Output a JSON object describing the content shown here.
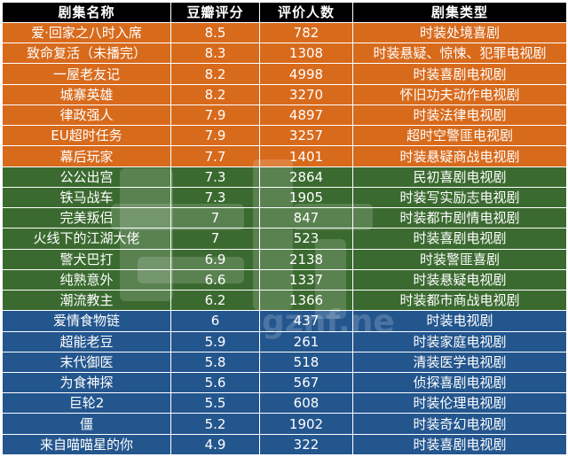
{
  "headers": [
    "剧集名称",
    "豆瓣评分",
    "评价人数",
    "剧集类型"
  ],
  "colors": {
    "orange": "#d86a1c",
    "green": "#3b6a30",
    "blue": "#24568e",
    "header": "#000000"
  },
  "rows": [
    {
      "group": "orange",
      "name": "爱·回家之八时入席",
      "score": "8.5",
      "votes": "782",
      "genre": "时装处境喜剧"
    },
    {
      "group": "orange",
      "name": "致命复活（未播完）",
      "score": "8.3",
      "votes": "1308",
      "genre": "时装悬疑、惊悚、犯罪电视剧"
    },
    {
      "group": "orange",
      "name": "一屋老友记",
      "score": "8.2",
      "votes": "4998",
      "genre": "时装喜剧电视剧"
    },
    {
      "group": "orange",
      "name": "城寨英雄",
      "score": "8.2",
      "votes": "3270",
      "genre": "怀旧功夫动作电视剧"
    },
    {
      "group": "orange",
      "name": "律政强人",
      "score": "7.9",
      "votes": "4897",
      "genre": "时装法律电视剧"
    },
    {
      "group": "orange",
      "name": "EU超时任务",
      "score": "7.9",
      "votes": "3257",
      "genre": "超时空警匪电视剧"
    },
    {
      "group": "orange",
      "name": "幕后玩家",
      "score": "7.7",
      "votes": "1401",
      "genre": "时装悬疑商战电视剧"
    },
    {
      "group": "green",
      "name": "公公出宫",
      "score": "7.3",
      "votes": "2864",
      "genre": "民初喜剧电视剧"
    },
    {
      "group": "green",
      "name": "铁马战车",
      "score": "7.3",
      "votes": "1905",
      "genre": "时装写实励志电视剧"
    },
    {
      "group": "green",
      "name": "完美叛侣",
      "score": "7",
      "votes": "847",
      "genre": "时装都市剧情电视剧"
    },
    {
      "group": "green",
      "name": "火线下的江湖大佬",
      "score": "7",
      "votes": "523",
      "genre": "时装喜剧电视剧"
    },
    {
      "group": "green",
      "name": "警犬巴打",
      "score": "6.9",
      "votes": "2138",
      "genre": "时装警匪喜剧"
    },
    {
      "group": "green",
      "name": "纯熟意外",
      "score": "6.6",
      "votes": "1337",
      "genre": "时装悬疑电视剧"
    },
    {
      "group": "green",
      "name": "潮流教主",
      "score": "6.2",
      "votes": "1366",
      "genre": "时装都市商战电视剧"
    },
    {
      "group": "blue",
      "name": "爱情食物链",
      "score": "6",
      "votes": "437",
      "genre": "时装电视剧"
    },
    {
      "group": "blue",
      "name": "超能老豆",
      "score": "5.9",
      "votes": "261",
      "genre": "时装家庭电视剧"
    },
    {
      "group": "blue",
      "name": "末代御医",
      "score": "5.8",
      "votes": "518",
      "genre": "清装医学电视剧"
    },
    {
      "group": "blue",
      "name": "为食神探",
      "score": "5.6",
      "votes": "567",
      "genre": "侦探喜剧电视剧"
    },
    {
      "group": "blue",
      "name": "巨轮2",
      "score": "5.5",
      "votes": "608",
      "genre": "时装伦理电视剧"
    },
    {
      "group": "blue",
      "name": "僵",
      "score": "5.2",
      "votes": "1902",
      "genre": "时装奇幻电视剧"
    },
    {
      "group": "blue",
      "name": "来自喵喵星的你",
      "score": "4.9",
      "votes": "322",
      "genre": "时装喜剧电视剧"
    }
  ],
  "watermark": {
    "text": "gznf.net"
  }
}
